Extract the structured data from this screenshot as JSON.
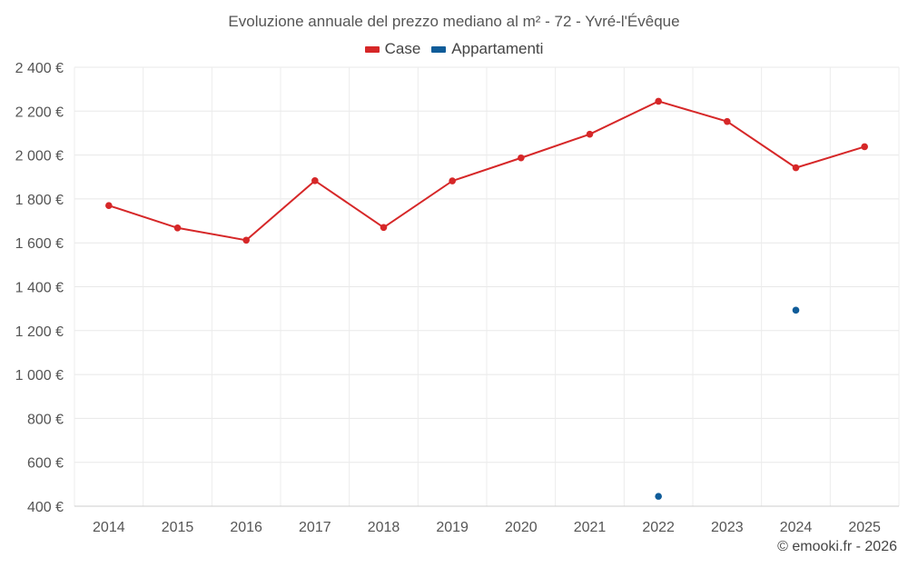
{
  "chart_data": {
    "type": "line",
    "title": "Evoluzione annuale del prezzo mediano al m² - 72 - Yvré-l'Évêque",
    "categories": [
      "2014",
      "2015",
      "2016",
      "2017",
      "2018",
      "2019",
      "2020",
      "2021",
      "2022",
      "2023",
      "2024",
      "2025"
    ],
    "series": [
      {
        "name": "Case",
        "color": "#d62728",
        "values": [
          1770,
          1668,
          1612,
          1883,
          1670,
          1882,
          1987,
          2095,
          2245,
          2153,
          1942,
          2038
        ]
      },
      {
        "name": "Appartamenti",
        "color": "#0f5c99",
        "values": [
          null,
          null,
          null,
          null,
          null,
          null,
          null,
          null,
          445,
          null,
          1293,
          null
        ]
      }
    ],
    "y_ticks": [
      "400 €",
      "600 €",
      "800 €",
      "1 000 €",
      "1 200 €",
      "1 400 €",
      "1 600 €",
      "1 800 €",
      "2 000 €",
      "2 200 €",
      "2 400 €"
    ],
    "ylim": [
      400,
      2400
    ],
    "xlabel": "",
    "ylabel": "",
    "legend": "top-center",
    "grid": true
  },
  "footer": {
    "copyright": "© emooki.fr - 2026"
  }
}
